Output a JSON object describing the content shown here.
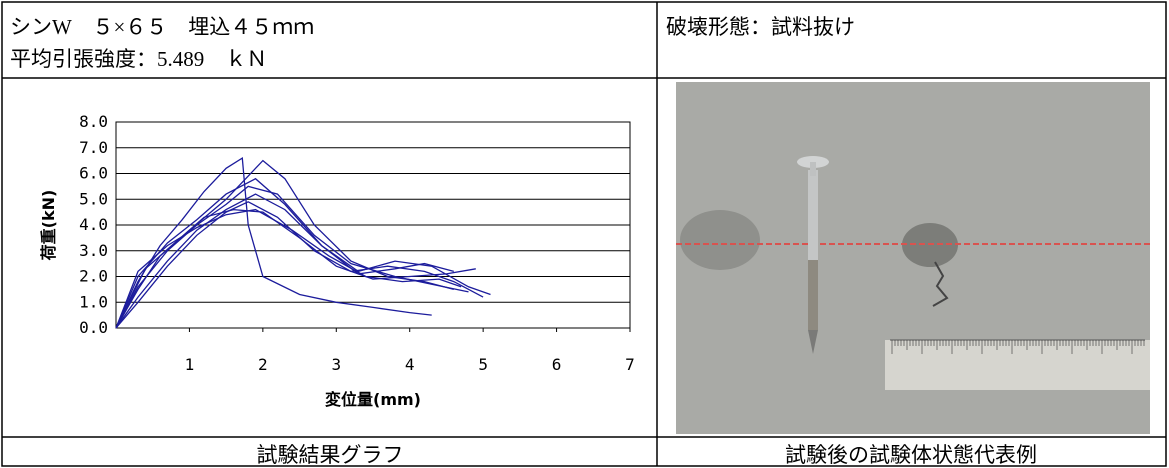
{
  "header": {
    "spec": "シンW　５×６５　埋込４５ｍｍ",
    "strength": "平均引張強度：5.489　ｋＮ",
    "failure_mode": "破壊形態：試料抜け"
  },
  "chart_data": {
    "type": "line",
    "xlabel": "変位量(mm)",
    "ylabel": "荷重(kN)",
    "xlim": [
      0,
      7
    ],
    "xticks": [
      1,
      2,
      3,
      4,
      5,
      6,
      7
    ],
    "ylim": [
      0,
      8
    ],
    "yticks": [
      {
        "value": 0,
        "label": "0.0"
      },
      {
        "value": 1,
        "label": "1.0"
      },
      {
        "value": 2,
        "label": "2.0"
      },
      {
        "value": 3,
        "label": "3.0"
      },
      {
        "value": 4,
        "label": "4.0"
      },
      {
        "value": 5,
        "label": "5.0"
      },
      {
        "value": 6,
        "label": "6.0"
      },
      {
        "value": 7,
        "label": "7.0"
      },
      {
        "value": 8,
        "label": "8.0"
      }
    ],
    "grid": true,
    "series": [
      {
        "color": "#1c1c9c",
        "x": [
          0,
          0.3,
          0.6,
          0.9,
          1.2,
          1.5,
          1.72,
          1.8,
          2.0,
          2.5,
          3.0,
          3.5,
          4.0,
          4.3
        ],
        "values": [
          0,
          1.8,
          3.2,
          4.2,
          5.3,
          6.2,
          6.6,
          4.0,
          2.0,
          1.3,
          1.0,
          0.8,
          0.6,
          0.5
        ]
      },
      {
        "color": "#1c1c9c",
        "x": [
          0,
          0.3,
          0.6,
          1.0,
          1.5,
          2.0,
          2.3,
          2.7,
          3.2,
          3.7,
          4.2,
          4.6
        ],
        "values": [
          0,
          1.5,
          2.8,
          3.8,
          5.0,
          6.5,
          5.8,
          4.0,
          2.6,
          2.0,
          1.8,
          1.5
        ]
      },
      {
        "color": "#1c1c9c",
        "x": [
          0,
          0.3,
          0.7,
          1.1,
          1.5,
          1.9,
          2.3,
          2.8,
          3.3,
          3.8,
          4.3,
          4.8,
          5.1
        ],
        "values": [
          0,
          2.0,
          3.3,
          4.2,
          5.2,
          5.8,
          4.8,
          3.2,
          2.2,
          2.6,
          2.4,
          1.6,
          1.3
        ]
      },
      {
        "color": "#1c1c9c",
        "x": [
          0,
          0.3,
          0.7,
          1.1,
          1.5,
          1.8,
          2.2,
          2.7,
          3.2,
          3.8,
          4.3,
          4.8
        ],
        "values": [
          0,
          1.6,
          3.0,
          4.0,
          4.8,
          5.5,
          5.2,
          3.6,
          2.5,
          2.0,
          1.7,
          1.4
        ]
      },
      {
        "color": "#1c1c9c",
        "x": [
          0,
          0.3,
          0.7,
          1.1,
          1.5,
          1.9,
          2.3,
          2.8,
          3.3,
          3.8,
          4.2,
          4.6
        ],
        "values": [
          0,
          1.2,
          2.6,
          3.8,
          4.6,
          5.2,
          4.6,
          3.2,
          2.1,
          2.3,
          2.5,
          2.2
        ]
      },
      {
        "color": "#1c1c9c",
        "x": [
          0,
          0.3,
          0.7,
          1.1,
          1.5,
          1.9,
          2.4,
          2.9,
          3.4,
          3.9,
          4.4,
          4.7
        ],
        "values": [
          0,
          2.2,
          3.2,
          3.9,
          4.4,
          4.6,
          3.8,
          2.8,
          2.0,
          1.8,
          1.9,
          1.6
        ]
      },
      {
        "color": "#1c1c9c",
        "x": [
          0,
          0.3,
          0.7,
          1.1,
          1.5,
          1.8,
          2.2,
          2.7,
          3.2,
          3.7,
          4.2,
          4.6,
          5.0
        ],
        "values": [
          0,
          1.0,
          2.4,
          3.6,
          4.5,
          4.9,
          4.3,
          3.0,
          2.2,
          2.4,
          2.2,
          1.8,
          1.2
        ]
      },
      {
        "color": "#1c1c9c",
        "x": [
          0,
          0.4,
          0.8,
          1.2,
          1.6,
          2.0,
          2.5,
          3.0,
          3.5,
          4.0,
          4.5,
          4.9
        ],
        "values": [
          0,
          2.3,
          3.3,
          4.3,
          4.6,
          4.5,
          3.5,
          2.4,
          1.9,
          2.0,
          2.1,
          2.3
        ]
      }
    ]
  },
  "captions": {
    "graph": "試験結果グラフ",
    "photo": "試験後の試験体状態代表例"
  }
}
